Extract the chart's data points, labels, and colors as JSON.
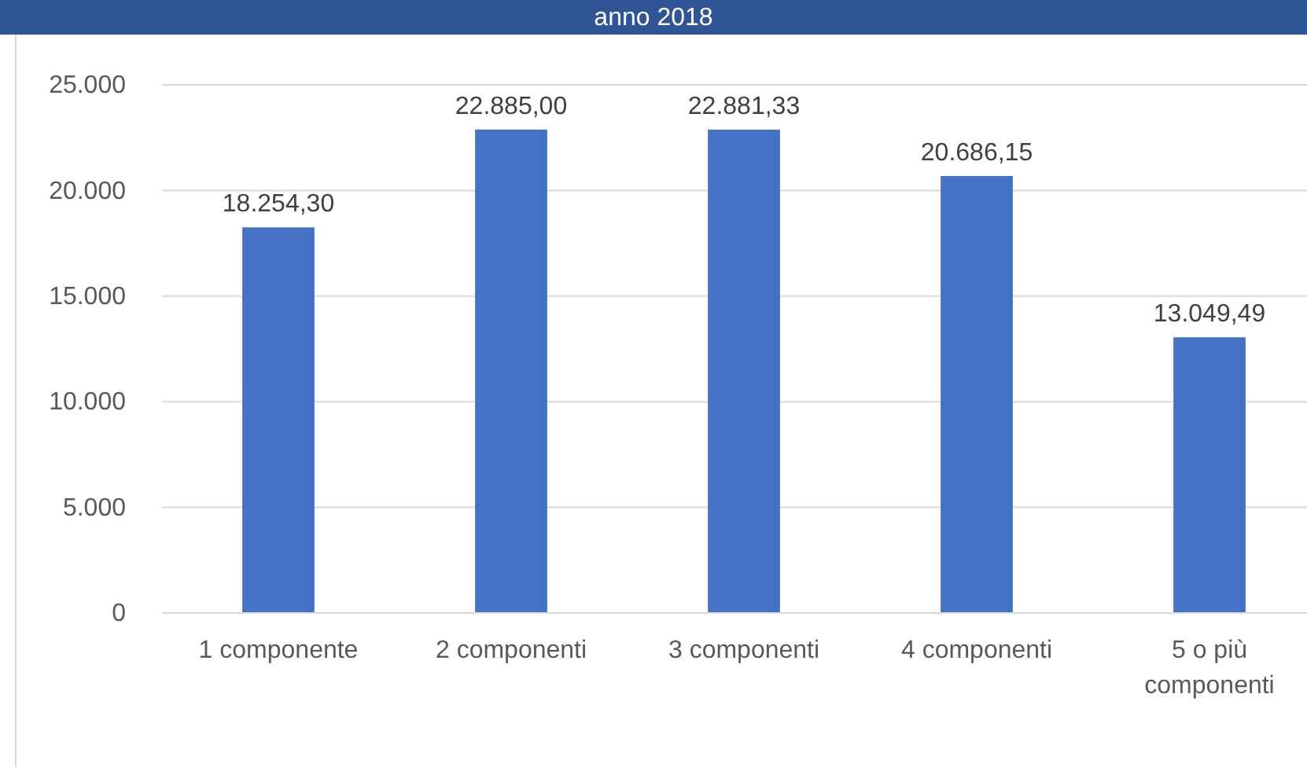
{
  "chart_data": {
    "type": "bar",
    "title": "anno 2018",
    "categories": [
      "1 componente",
      "2 componenti",
      "3 componenti",
      "4 componenti",
      "5 o più componenti"
    ],
    "values": [
      18254.3,
      22885.0,
      22881.33,
      20686.15,
      13049.49
    ],
    "value_labels": [
      "18.254,30",
      "22.885,00",
      "22.881,33",
      "20.686,15",
      "13.049,49"
    ],
    "color": "#4472c4",
    "ylim": [
      0,
      25000
    ],
    "yticks": [
      {
        "value": 0,
        "label": "0"
      },
      {
        "value": 5000,
        "label": "5.000"
      },
      {
        "value": 10000,
        "label": "10.000"
      },
      {
        "value": 15000,
        "label": "15.000"
      },
      {
        "value": 20000,
        "label": "20.000"
      },
      {
        "value": 25000,
        "label": "25.000"
      }
    ],
    "grid": "y"
  }
}
